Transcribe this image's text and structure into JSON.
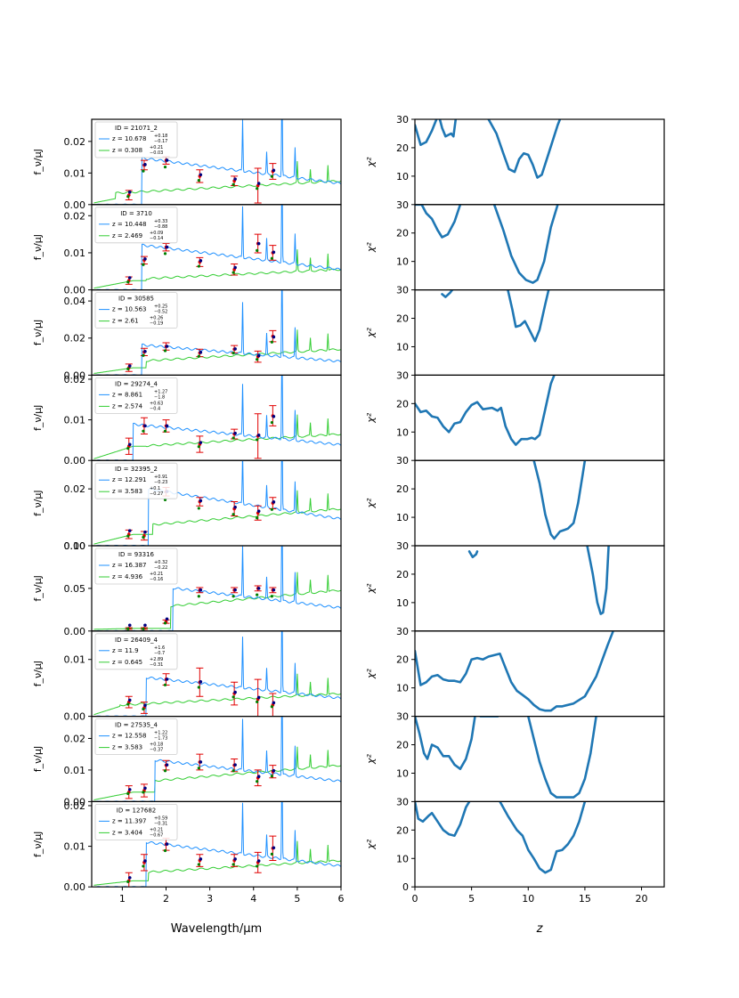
{
  "figure": {
    "left_xlabel": "Wavelength/μm",
    "right_xlabel": "z",
    "left_ylabel": "f_ν/μJ",
    "right_ylabel": "χ²",
    "left_xticks": [
      "1",
      "2",
      "3",
      "4",
      "5",
      "6"
    ],
    "right_xticks": [
      "0",
      "5",
      "10",
      "15",
      "20"
    ],
    "right_yticks": [
      "10",
      "20",
      "30"
    ],
    "right_ytick_zero": "0"
  },
  "chart_data": [
    {
      "type": "line",
      "id": "ID = 21071_2",
      "z_hi": "10.678",
      "z_hi_err": [
        "0.18",
        "0.17"
      ],
      "z_lo": "0.308",
      "z_lo_err": [
        "0.21",
        "0.03"
      ],
      "ylim": [
        0,
        0.027
      ],
      "yticks": [
        "0.00",
        "0.01",
        "0.02"
      ],
      "break_hi": 1.45,
      "break_lo": 0.85,
      "phot": [
        [
          1.15,
          0.003,
          0.0015
        ],
        [
          1.5,
          0.0125,
          0.0015
        ],
        [
          2.0,
          0.014,
          0.0012
        ],
        [
          2.77,
          0.009,
          0.002
        ],
        [
          3.56,
          0.0075,
          0.0015
        ],
        [
          4.1,
          0.006,
          0.0055
        ],
        [
          4.44,
          0.0105,
          0.0025
        ]
      ],
      "chi2": [
        [
          0,
          28
        ],
        [
          0.5,
          21
        ],
        [
          1.0,
          22
        ],
        [
          1.5,
          26
        ],
        [
          1.9,
          30
        ],
        null,
        [
          2.2,
          30
        ],
        [
          2.4,
          27
        ],
        [
          2.7,
          24
        ],
        [
          3.2,
          25
        ],
        [
          3.4,
          24
        ],
        [
          3.6,
          30
        ],
        null,
        [
          6.5,
          30
        ],
        [
          7.2,
          25
        ],
        [
          7.8,
          18
        ],
        [
          8.3,
          12.5
        ],
        [
          8.8,
          11.5
        ],
        [
          9.2,
          16
        ],
        [
          9.6,
          18
        ],
        [
          10,
          17.5
        ],
        [
          10.4,
          14
        ],
        [
          10.8,
          9.5
        ],
        [
          11.2,
          10.5
        ],
        [
          11.8,
          18
        ],
        [
          12.6,
          28
        ],
        [
          12.8,
          30
        ]
      ]
    },
    {
      "type": "line",
      "id": "ID = 3710",
      "z_hi": "10.448",
      "z_hi_err": [
        "0.33",
        "0.88"
      ],
      "z_lo": "2.469",
      "z_lo_err": [
        "0.09",
        "0.14"
      ],
      "ylim": [
        0,
        0.023
      ],
      "yticks": [
        "0.00",
        "0.01",
        "0.02"
      ],
      "break_hi": 1.45,
      "break_lo": 1.55,
      "phot": [
        [
          1.15,
          0.0025,
          0.001
        ],
        [
          1.5,
          0.008,
          0.001
        ],
        [
          2.0,
          0.0115,
          0.001
        ],
        [
          2.77,
          0.0075,
          0.0012
        ],
        [
          3.56,
          0.0055,
          0.0015
        ],
        [
          4.1,
          0.0125,
          0.0025
        ],
        [
          4.44,
          0.01,
          0.002
        ]
      ],
      "chi2": [
        [
          0,
          30
        ],
        [
          0.6,
          30
        ],
        [
          1.0,
          27
        ],
        [
          1.5,
          25
        ],
        [
          2.0,
          21
        ],
        [
          2.4,
          18.5
        ],
        [
          2.9,
          19.5
        ],
        [
          3.5,
          24
        ],
        [
          4.0,
          30
        ],
        null,
        [
          7.0,
          30
        ],
        [
          7.8,
          21
        ],
        [
          8.5,
          12
        ],
        [
          9.2,
          6
        ],
        [
          9.8,
          3.5
        ],
        [
          10.4,
          2.5
        ],
        [
          10.8,
          3.5
        ],
        [
          11.4,
          10
        ],
        [
          12.0,
          22
        ],
        [
          12.6,
          30
        ]
      ]
    },
    {
      "type": "line",
      "id": "ID = 30585",
      "z_hi": "10.563",
      "z_hi_err": [
        "0.25",
        "0.52"
      ],
      "z_lo": "2.61",
      "z_lo_err": [
        "0.26",
        "0.19"
      ],
      "ylim": [
        0,
        0.046
      ],
      "yticks": [
        "0.00",
        "0.02",
        "0.04"
      ],
      "break_hi": 1.45,
      "break_lo": 1.55,
      "phot": [
        [
          1.15,
          0.004,
          0.002
        ],
        [
          1.5,
          0.0125,
          0.002
        ],
        [
          2.0,
          0.0155,
          0.002
        ],
        [
          2.77,
          0.012,
          0.002
        ],
        [
          3.56,
          0.014,
          0.002
        ],
        [
          4.1,
          0.01,
          0.003
        ],
        [
          4.44,
          0.021,
          0.003
        ]
      ],
      "chi2": [
        [
          2.4,
          28.5
        ],
        [
          2.7,
          27.5
        ],
        [
          3.1,
          29
        ],
        [
          3.3,
          30
        ],
        null,
        [
          8.2,
          30
        ],
        [
          8.6,
          23
        ],
        [
          8.9,
          17
        ],
        [
          9.3,
          17.5
        ],
        [
          9.7,
          19
        ],
        [
          10.1,
          16
        ],
        [
          10.6,
          12
        ],
        [
          11.0,
          16
        ],
        [
          11.5,
          25
        ],
        [
          11.8,
          30
        ]
      ]
    },
    {
      "type": "line",
      "id": "ID = 29274_4",
      "z_hi": "8.861",
      "z_hi_err": [
        "1.27",
        "1.8"
      ],
      "z_lo": "2.574",
      "z_lo_err": [
        "0.63",
        "0.4"
      ],
      "ylim": [
        0,
        0.021
      ],
      "yticks": [
        "0.00",
        "0.01",
        "0.02"
      ],
      "break_hi": 1.25,
      "break_lo": 1.55,
      "phot": [
        [
          1.15,
          0.0035,
          0.002
        ],
        [
          1.5,
          0.0085,
          0.002
        ],
        [
          2.0,
          0.0085,
          0.0015
        ],
        [
          2.77,
          0.004,
          0.002
        ],
        [
          3.56,
          0.0065,
          0.0012
        ],
        [
          4.1,
          0.006,
          0.0055
        ],
        [
          4.44,
          0.011,
          0.0025
        ]
      ],
      "chi2": [
        [
          0,
          20
        ],
        [
          0.5,
          17
        ],
        [
          1.0,
          17.5
        ],
        [
          1.5,
          15.5
        ],
        [
          2.0,
          15
        ],
        [
          2.5,
          12
        ],
        [
          3.0,
          10
        ],
        [
          3.5,
          13
        ],
        [
          4.0,
          13.5
        ],
        [
          4.5,
          17
        ],
        [
          5.0,
          19.5
        ],
        [
          5.5,
          20.5
        ],
        [
          6.0,
          18
        ],
        [
          6.8,
          18.5
        ],
        [
          7.3,
          17.5
        ],
        [
          7.6,
          18.5
        ],
        [
          8.0,
          12
        ],
        [
          8.5,
          7.5
        ],
        [
          8.9,
          5.5
        ],
        [
          9.4,
          7.5
        ],
        [
          9.9,
          7.5
        ],
        [
          10.3,
          8
        ],
        [
          10.6,
          7.5
        ],
        [
          11.0,
          9
        ],
        [
          11.5,
          18
        ],
        [
          12.0,
          27
        ],
        [
          12.3,
          30
        ]
      ]
    },
    {
      "type": "line",
      "id": "ID = 32395_2",
      "z_hi": "12.291",
      "z_hi_err": [
        "0.91",
        "0.23"
      ],
      "z_lo": "3.583",
      "z_lo_err": [
        "0.1",
        "0.27"
      ],
      "ylim": [
        0,
        0.03
      ],
      "yticks": [
        "0.00",
        "0.02"
      ],
      "break_hi": 1.6,
      "break_lo": 1.7,
      "phot": [
        [
          1.15,
          0.004,
          0.0015
        ],
        [
          1.5,
          0.0035,
          0.0015
        ],
        [
          2.0,
          0.019,
          0.0015
        ],
        [
          2.77,
          0.0155,
          0.0015
        ],
        [
          3.56,
          0.013,
          0.0025
        ],
        [
          4.1,
          0.0115,
          0.0025
        ],
        [
          4.44,
          0.015,
          0.002
        ]
      ],
      "chi2": [
        [
          10.5,
          30
        ],
        [
          11.0,
          22
        ],
        [
          11.5,
          11
        ],
        [
          12.0,
          4
        ],
        [
          12.3,
          2.5
        ],
        [
          12.8,
          5
        ],
        [
          13.5,
          6
        ],
        [
          14.0,
          8
        ],
        [
          14.4,
          15
        ],
        [
          14.8,
          25
        ],
        [
          15.0,
          30
        ]
      ]
    },
    {
      "type": "line",
      "id": "ID = 93316",
      "z_hi": "16.387",
      "z_hi_err": [
        "0.32",
        "0.22"
      ],
      "z_lo": "4.936",
      "z_lo_err": [
        "0.21",
        "0.16"
      ],
      "ylim": [
        0,
        0.1
      ],
      "yticks": [
        "0.00",
        "0.05",
        "0.10"
      ],
      "break_hi": 2.15,
      "break_lo": 2.1,
      "phot": [
        [
          1.15,
          0.003,
          0.001
        ],
        [
          1.5,
          0.003,
          0.001
        ],
        [
          2.0,
          0.011,
          0.002
        ],
        [
          2.77,
          0.048,
          0.003
        ],
        [
          3.56,
          0.048,
          0.003
        ],
        [
          4.1,
          0.05,
          0.003
        ],
        [
          4.44,
          0.048,
          0.003
        ]
      ],
      "chi2": [
        [
          4.8,
          28
        ],
        [
          5.1,
          26
        ],
        [
          5.4,
          27
        ],
        [
          5.5,
          28
        ],
        null,
        [
          15.2,
          30
        ],
        [
          15.7,
          20
        ],
        [
          16.1,
          10
        ],
        [
          16.4,
          6
        ],
        [
          16.6,
          6.5
        ],
        [
          16.9,
          15
        ],
        [
          17.1,
          30
        ]
      ]
    },
    {
      "type": "line",
      "id": "ID = 26409_4",
      "z_hi": "11.9",
      "z_hi_err": [
        "1.6",
        "0.7"
      ],
      "z_lo": "0.645",
      "z_lo_err": [
        "2.89",
        "0.31"
      ],
      "ylim": [
        0,
        0.015
      ],
      "yticks": [
        "0.00",
        "0.01"
      ],
      "break_hi": 1.55,
      "break_lo": 0.95,
      "phot": [
        [
          1.15,
          0.0025,
          0.001
        ],
        [
          1.5,
          0.0015,
          0.001
        ],
        [
          2.0,
          0.0065,
          0.001
        ],
        [
          2.77,
          0.006,
          0.0025
        ],
        [
          3.56,
          0.004,
          0.002
        ],
        [
          4.1,
          0.003,
          0.0035
        ],
        [
          4.44,
          0.002,
          0.002
        ]
      ],
      "chi2": [
        [
          0,
          23
        ],
        [
          0.5,
          11
        ],
        [
          1.0,
          12
        ],
        [
          1.5,
          14
        ],
        [
          2.0,
          14.5
        ],
        [
          2.5,
          13
        ],
        [
          3.0,
          12.5
        ],
        [
          3.5,
          12.5
        ],
        [
          4.0,
          12
        ],
        [
          4.5,
          15
        ],
        [
          5.0,
          20
        ],
        [
          5.5,
          20.5
        ],
        [
          6.0,
          20
        ],
        [
          6.5,
          21
        ],
        [
          7.0,
          21.5
        ],
        [
          7.5,
          22
        ],
        [
          8.0,
          17
        ],
        [
          8.5,
          12
        ],
        [
          9.0,
          9
        ],
        [
          9.5,
          7.5
        ],
        [
          10.0,
          6
        ],
        [
          10.5,
          4
        ],
        [
          11.0,
          2.5
        ],
        [
          11.5,
          2
        ],
        [
          12.0,
          2
        ],
        [
          12.5,
          3.5
        ],
        [
          13.0,
          3.5
        ],
        [
          14.0,
          4.5
        ],
        [
          15.0,
          7
        ],
        [
          16.0,
          14
        ],
        [
          17.0,
          25
        ],
        [
          17.5,
          30
        ]
      ]
    },
    {
      "type": "line",
      "id": "ID = 27535_4",
      "z_hi": "12.558",
      "z_hi_err": [
        "1.22",
        "1.73"
      ],
      "z_lo": "3.583",
      "z_lo_err": [
        "0.18",
        "0.37"
      ],
      "ylim": [
        0,
        0.027
      ],
      "yticks": [
        "0.00",
        "0.01",
        "0.02"
      ],
      "break_hi": 1.75,
      "break_lo": 1.75,
      "phot": [
        [
          1.15,
          0.003,
          0.002
        ],
        [
          1.5,
          0.0035,
          0.002
        ],
        [
          2.0,
          0.0115,
          0.0015
        ],
        [
          2.77,
          0.0125,
          0.0025
        ],
        [
          3.56,
          0.0115,
          0.002
        ],
        [
          4.1,
          0.0075,
          0.0025
        ],
        [
          4.44,
          0.0095,
          0.002
        ]
      ],
      "chi2": [
        [
          0,
          30
        ],
        [
          0.4,
          24
        ],
        [
          0.8,
          17
        ],
        [
          1.1,
          15
        ],
        [
          1.5,
          20
        ],
        [
          2.0,
          19
        ],
        [
          2.5,
          16
        ],
        [
          3.0,
          16
        ],
        [
          3.5,
          13
        ],
        [
          4.0,
          11.5
        ],
        [
          4.5,
          15
        ],
        [
          5.0,
          22
        ],
        [
          5.3,
          30
        ],
        null,
        [
          5.8,
          30
        ],
        [
          6.5,
          30
        ],
        [
          7.0,
          30
        ],
        [
          7.3,
          30
        ],
        null,
        [
          10.0,
          30
        ],
        [
          10.5,
          22
        ],
        [
          11.0,
          14
        ],
        [
          11.5,
          8
        ],
        [
          12.0,
          3
        ],
        [
          12.5,
          1.5
        ],
        [
          14.0,
          1.5
        ],
        [
          14.5,
          3
        ],
        [
          15.0,
          8
        ],
        [
          15.5,
          17
        ],
        [
          16.0,
          30
        ]
      ]
    },
    {
      "type": "line",
      "id": "ID = 127682",
      "z_hi": "11.397",
      "z_hi_err": [
        "0.59",
        "0.31"
      ],
      "z_lo": "3.404",
      "z_lo_err": [
        "0.21",
        "0.67"
      ],
      "ylim": [
        0,
        0.021
      ],
      "yticks": [
        "0.00",
        "0.01",
        "0.02"
      ],
      "break_hi": 1.55,
      "break_lo": 1.6,
      "phot": [
        [
          1.15,
          0.0015,
          0.002
        ],
        [
          1.5,
          0.006,
          0.002
        ],
        [
          2.0,
          0.0105,
          0.0015
        ],
        [
          2.77,
          0.0065,
          0.0015
        ],
        [
          3.56,
          0.0065,
          0.0015
        ],
        [
          4.1,
          0.006,
          0.0025
        ],
        [
          4.44,
          0.0095,
          0.003
        ]
      ],
      "chi2": [
        [
          0,
          30
        ],
        [
          0.3,
          24
        ],
        [
          0.7,
          23
        ],
        [
          1.2,
          25
        ],
        [
          1.5,
          26
        ],
        [
          2.0,
          23
        ],
        [
          2.5,
          20
        ],
        [
          3.0,
          18.5
        ],
        [
          3.5,
          18
        ],
        [
          4.0,
          22
        ],
        [
          4.5,
          28
        ],
        [
          4.8,
          30
        ],
        null,
        [
          7.5,
          30
        ],
        [
          8.2,
          25
        ],
        [
          9.0,
          20
        ],
        [
          9.5,
          18
        ],
        [
          10.0,
          13
        ],
        [
          10.5,
          10
        ],
        [
          11.0,
          6.5
        ],
        [
          11.5,
          5
        ],
        [
          12.0,
          6
        ],
        [
          12.5,
          12.5
        ],
        [
          13.0,
          13
        ],
        [
          13.5,
          15
        ],
        [
          14.0,
          18
        ],
        [
          14.5,
          23
        ],
        [
          15.0,
          30
        ]
      ]
    }
  ]
}
